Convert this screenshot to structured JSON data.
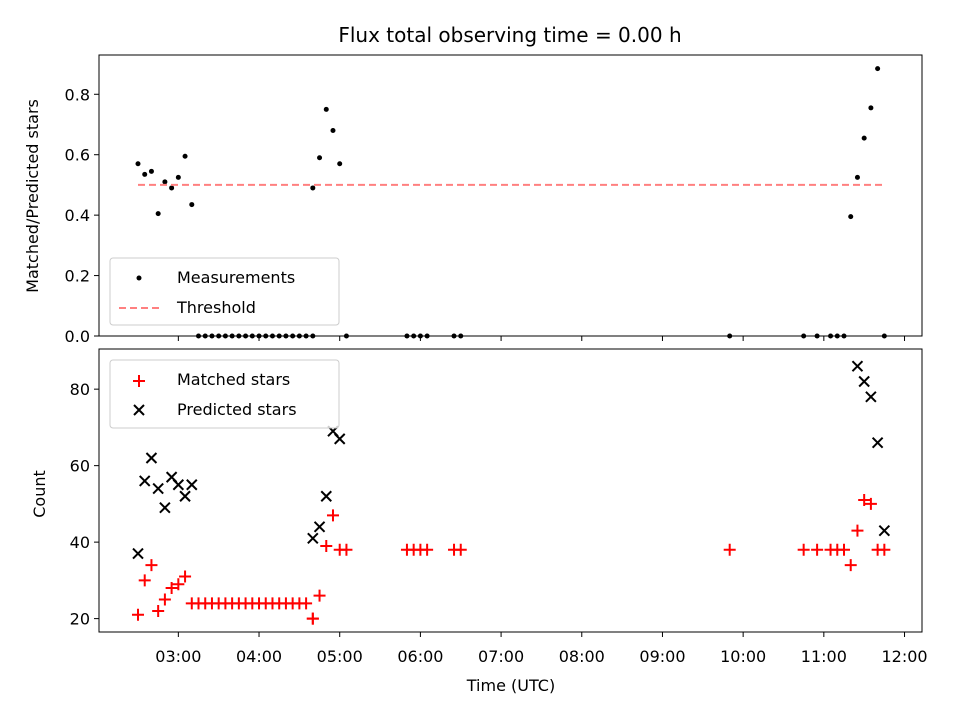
{
  "chart_data": [
    {
      "type": "scatter",
      "title": "Flux total observing time = 0.00 h",
      "xlabel": "",
      "ylabel": "Matched/Predicted stars",
      "ylim": [
        0,
        0.93
      ],
      "yticks": [
        "0.0",
        "0.2",
        "0.4",
        "0.6",
        "0.8"
      ],
      "legend": {
        "placement": "lower-left",
        "entries": [
          "Measurements",
          "Threshold"
        ]
      },
      "series": [
        {
          "name": "Measurements",
          "marker": "dot",
          "color": "#000000",
          "x": [
            "02:30",
            "02:35",
            "02:40",
            "02:45",
            "02:50",
            "02:55",
            "03:00",
            "03:05",
            "03:10",
            "03:15",
            "03:20",
            "03:25",
            "03:30",
            "03:35",
            "03:40",
            "03:45",
            "03:50",
            "03:55",
            "04:00",
            "04:05",
            "04:10",
            "04:15",
            "04:20",
            "04:25",
            "04:30",
            "04:35",
            "04:40",
            "04:40",
            "04:45",
            "04:50",
            "04:55",
            "05:00",
            "05:05",
            "05:50",
            "05:55",
            "06:00",
            "06:05",
            "06:25",
            "06:30",
            "09:50",
            "10:45",
            "10:55",
            "11:05",
            "11:10",
            "11:15",
            "11:20",
            "11:25",
            "11:30",
            "11:35",
            "11:40",
            "11:45"
          ],
          "y": [
            0.57,
            0.535,
            0.545,
            0.405,
            0.51,
            0.49,
            0.525,
            0.595,
            0.435,
            0,
            0,
            0,
            0,
            0,
            0,
            0,
            0,
            0,
            0,
            0,
            0,
            0,
            0,
            0,
            0,
            0,
            0,
            0.49,
            0.59,
            0.75,
            0.68,
            0.57,
            0,
            0,
            0,
            0,
            0,
            0,
            0,
            0,
            0,
            0,
            0,
            0,
            0,
            0.395,
            0.525,
            0.655,
            0.755,
            0.885,
            0
          ]
        },
        {
          "name": "Threshold",
          "type": "line",
          "style": "dashed",
          "color": "#ff8080",
          "x": [
            "02:30",
            "11:45"
          ],
          "y": [
            0.5,
            0.5
          ]
        }
      ]
    },
    {
      "type": "scatter",
      "title": "",
      "xlabel": "Time (UTC)",
      "ylabel": "Count",
      "ylim": [
        16.5,
        90.5
      ],
      "yticks": [
        "20",
        "40",
        "60",
        "80"
      ],
      "xticks": [
        "03:00",
        "04:00",
        "05:00",
        "06:00",
        "07:00",
        "08:00",
        "09:00",
        "10:00",
        "11:00",
        "12:00"
      ],
      "xlim": [
        "02:01",
        "12:13"
      ],
      "legend": {
        "placement": "top-left",
        "entries": [
          "Matched stars",
          "Predicted stars"
        ]
      },
      "series": [
        {
          "name": "Matched stars",
          "marker": "plus",
          "color": "#ff0000",
          "x": [
            "02:30",
            "02:35",
            "02:40",
            "02:45",
            "02:50",
            "02:55",
            "03:00",
            "03:05",
            "03:10",
            "03:15",
            "03:20",
            "03:25",
            "03:30",
            "03:35",
            "03:40",
            "03:45",
            "03:50",
            "03:55",
            "04:00",
            "04:05",
            "04:10",
            "04:15",
            "04:20",
            "04:25",
            "04:30",
            "04:35",
            "04:40",
            "04:40",
            "04:45",
            "04:50",
            "04:55",
            "05:00",
            "05:05",
            "05:50",
            "05:55",
            "06:00",
            "06:05",
            "06:25",
            "06:30",
            "09:50",
            "10:45",
            "10:55",
            "11:05",
            "11:10",
            "11:15",
            "11:20",
            "11:25",
            "11:30",
            "11:35",
            "11:40",
            "11:45"
          ],
          "y": [
            21,
            30,
            34,
            22,
            25,
            28,
            29,
            31,
            24,
            24,
            24,
            24,
            24,
            24,
            24,
            24,
            24,
            24,
            24,
            24,
            24,
            24,
            24,
            24,
            24,
            24,
            20,
            20,
            26,
            39,
            47,
            38,
            38,
            38,
            38,
            38,
            38,
            38,
            38,
            38,
            38,
            38,
            38,
            38,
            38,
            34,
            43,
            51,
            50,
            38,
            38
          ]
        },
        {
          "name": "Predicted stars",
          "marker": "x",
          "color": "#000000",
          "x": [
            "02:30",
            "02:35",
            "02:40",
            "02:45",
            "02:50",
            "02:55",
            "03:00",
            "03:05",
            "03:10",
            "04:40",
            "04:45",
            "04:50",
            "04:55",
            "05:00",
            "11:25",
            "11:30",
            "11:35",
            "11:40",
            "11:45"
          ],
          "y": [
            37,
            56,
            62,
            54,
            49,
            57,
            55,
            52,
            55,
            41,
            44,
            52,
            69,
            67,
            86,
            82,
            78,
            66,
            43
          ]
        }
      ]
    }
  ]
}
